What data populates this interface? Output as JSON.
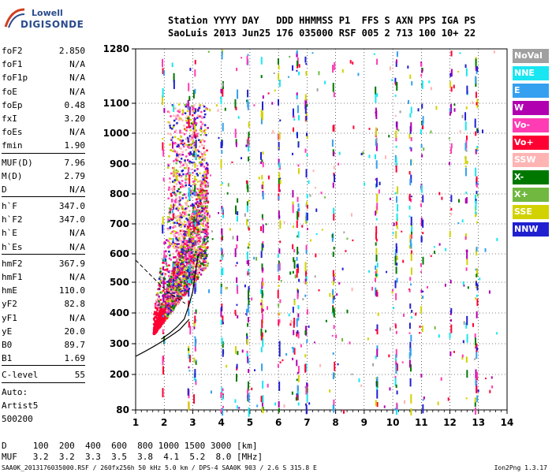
{
  "logo": {
    "line1": "Lowell",
    "line2": "DIGISONDE"
  },
  "header": {
    "labels_line": "Station YYYY DAY   DDD HHMMSS P1  FFS S AXN PPS IGA PS",
    "values_line": "SaoLuis 2013 Jun25 176 035000 RSF 005 2 713 100 10+ 22"
  },
  "params": [
    [
      {
        "k": "foF2",
        "v": "2.850"
      },
      {
        "k": "foF1",
        "v": "N/A"
      },
      {
        "k": "foF1p",
        "v": "N/A"
      },
      {
        "k": "foE",
        "v": "N/A"
      },
      {
        "k": "foEp",
        "v": "0.48"
      },
      {
        "k": "fxI",
        "v": "3.20"
      },
      {
        "k": "foEs",
        "v": "N/A"
      },
      {
        "k": "fmin",
        "v": "1.90"
      }
    ],
    [
      {
        "k": "MUF(D)",
        "v": "7.96"
      },
      {
        "k": "M(D)",
        "v": "2.79"
      },
      {
        "k": "D",
        "v": "N/A"
      }
    ],
    [
      {
        "k": "h`F",
        "v": "347.0"
      },
      {
        "k": "h`F2",
        "v": "347.0"
      },
      {
        "k": "h`E",
        "v": "N/A"
      },
      {
        "k": "h`Es",
        "v": "N/A"
      }
    ],
    [
      {
        "k": "hmF2",
        "v": "367.9"
      },
      {
        "k": "hmF1",
        "v": "N/A"
      },
      {
        "k": "hmE",
        "v": "110.0"
      },
      {
        "k": "yF2",
        "v": "82.8"
      },
      {
        "k": "yF1",
        "v": "N/A"
      },
      {
        "k": "yE",
        "v": "20.0"
      },
      {
        "k": "B0",
        "v": "89.7"
      },
      {
        "k": "B1",
        "v": "1.69"
      }
    ],
    [
      {
        "k": "C-level",
        "v": "55"
      }
    ],
    [
      {
        "k": "Auto:",
        "v": ""
      },
      {
        "k": "Artist5",
        "v": ""
      },
      {
        "k": "500200",
        "v": ""
      }
    ]
  ],
  "legend": [
    {
      "label": "NoVal",
      "color": "#a0a0a0"
    },
    {
      "label": "NNE",
      "color": "#19e6f0"
    },
    {
      "label": "E",
      "color": "#35a0f0"
    },
    {
      "label": "W",
      "color": "#b000b0"
    },
    {
      "label": "Vo-",
      "color": "#ff3cb4"
    },
    {
      "label": "Vo+",
      "color": "#ff0033"
    },
    {
      "label": "SSW",
      "color": "#ffb4b4"
    },
    {
      "label": "X-",
      "color": "#007800"
    },
    {
      "label": "X+",
      "color": "#70b840"
    },
    {
      "label": "SSE",
      "color": "#d2d200"
    },
    {
      "label": "NNW",
      "color": "#2020d0"
    }
  ],
  "chart_data": {
    "type": "scatter",
    "x_ticks": [
      "1",
      "2",
      "3",
      "4",
      "5",
      "6",
      "7",
      "8",
      "9",
      "10",
      "11",
      "12",
      "13",
      "14"
    ],
    "y_ticks": [
      "80",
      "200",
      "300",
      "400",
      "500",
      "600",
      "700",
      "800",
      "900",
      "1000",
      "1100",
      "1280"
    ],
    "xlim": [
      1,
      14
    ],
    "ylim": [
      80,
      1280
    ],
    "y_scale": "nonlinear",
    "grid": "dotted",
    "trace_profile": [
      {
        "f": 1.9,
        "h": 315
      },
      {
        "f": 2.2,
        "h": 335
      },
      {
        "f": 2.45,
        "h": 355
      },
      {
        "f": 2.7,
        "h": 380
      },
      {
        "f": 2.85,
        "h": 420
      },
      {
        "f": 3.0,
        "h": 470
      },
      {
        "f": 3.1,
        "h": 540
      },
      {
        "f": 3.2,
        "h": 600
      }
    ],
    "echo_region": {
      "f_min": 1.6,
      "f_max": 3.5,
      "h_min": 320,
      "h_max": 1100
    }
  },
  "dmuf": {
    "d_line": "D     100  200  400  600  800 1000 1500 3000 [km]",
    "muf_line": "MUF   3.2  3.2  3.3  3.5  3.8  4.1  5.2  8.0 [MHz]"
  },
  "footer": {
    "left": "SAA0K_2013176035000.RSF / 260fx256h 50 kHz 5.0 km / DPS-4 SAA0K 903 / 2.6 S 315.8 E",
    "right": "Ion2Png 1.3.17"
  }
}
